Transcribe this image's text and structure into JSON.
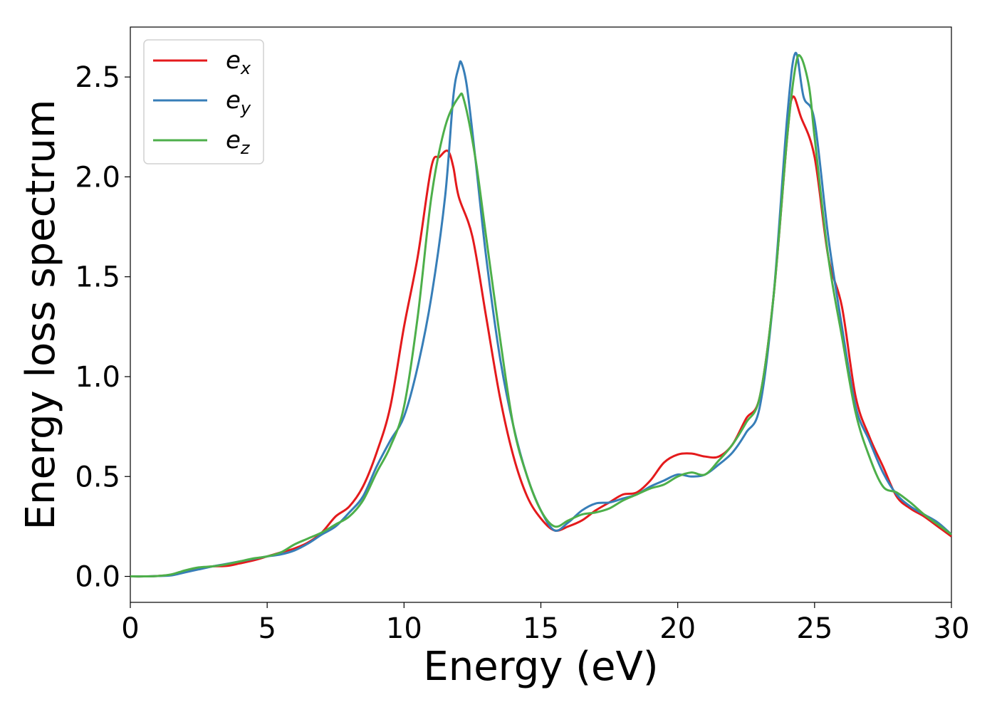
{
  "chart_data": {
    "type": "line",
    "title": "",
    "xlabel": "Energy (eV)",
    "ylabel": "Energy loss spectrum",
    "xlim": [
      0,
      30
    ],
    "ylim": [
      -0.13,
      2.75
    ],
    "xticks": [
      0,
      5,
      10,
      15,
      20,
      25,
      30
    ],
    "xtick_labels": [
      "0",
      "5",
      "10",
      "15",
      "20",
      "25",
      "30"
    ],
    "yticks": [
      0.0,
      0.5,
      1.0,
      1.5,
      2.0,
      2.5
    ],
    "ytick_labels": [
      "0.0",
      "0.5",
      "1.0",
      "1.5",
      "2.0",
      "2.5"
    ],
    "grid": false,
    "legend_position": "top-left",
    "series": [
      {
        "name": "e",
        "subscript": "x",
        "color": "#e41a1c",
        "points": [
          [
            0,
            0
          ],
          [
            0.5,
            0
          ],
          [
            1,
            0.002
          ],
          [
            1.5,
            0.008
          ],
          [
            2,
            0.025
          ],
          [
            2.5,
            0.04
          ],
          [
            3,
            0.05
          ],
          [
            3.5,
            0.052
          ],
          [
            4,
            0.065
          ],
          [
            4.5,
            0.08
          ],
          [
            5,
            0.1
          ],
          [
            5.5,
            0.12
          ],
          [
            6,
            0.14
          ],
          [
            6.5,
            0.17
          ],
          [
            7,
            0.22
          ],
          [
            7.5,
            0.3
          ],
          [
            8,
            0.35
          ],
          [
            8.5,
            0.45
          ],
          [
            9,
            0.62
          ],
          [
            9.5,
            0.85
          ],
          [
            10,
            1.25
          ],
          [
            10.5,
            1.6
          ],
          [
            11,
            2.05
          ],
          [
            11.3,
            2.1
          ],
          [
            11.6,
            2.13
          ],
          [
            11.8,
            2.05
          ],
          [
            12,
            1.9
          ],
          [
            12.5,
            1.7
          ],
          [
            13,
            1.3
          ],
          [
            13.5,
            0.9
          ],
          [
            14,
            0.6
          ],
          [
            14.5,
            0.4
          ],
          [
            15,
            0.29
          ],
          [
            15.5,
            0.23
          ],
          [
            16,
            0.25
          ],
          [
            16.5,
            0.28
          ],
          [
            17,
            0.33
          ],
          [
            17.5,
            0.37
          ],
          [
            18,
            0.41
          ],
          [
            18.5,
            0.42
          ],
          [
            19,
            0.48
          ],
          [
            19.5,
            0.57
          ],
          [
            20,
            0.61
          ],
          [
            20.5,
            0.615
          ],
          [
            21,
            0.6
          ],
          [
            21.5,
            0.6
          ],
          [
            22,
            0.66
          ],
          [
            22.5,
            0.79
          ],
          [
            23,
            0.9
          ],
          [
            23.5,
            1.4
          ],
          [
            24,
            2.2
          ],
          [
            24.2,
            2.4
          ],
          [
            24.5,
            2.3
          ],
          [
            25,
            2.1
          ],
          [
            25.5,
            1.6
          ],
          [
            26,
            1.35
          ],
          [
            26.5,
            0.9
          ],
          [
            27,
            0.7
          ],
          [
            27.5,
            0.55
          ],
          [
            28,
            0.4
          ],
          [
            28.5,
            0.34
          ],
          [
            29,
            0.3
          ],
          [
            29.5,
            0.25
          ],
          [
            30,
            0.2
          ]
        ]
      },
      {
        "name": "e",
        "subscript": "y",
        "color": "#377eb8",
        "points": [
          [
            0,
            0
          ],
          [
            0.5,
            0
          ],
          [
            1,
            0.002
          ],
          [
            1.5,
            0.005
          ],
          [
            2,
            0.02
          ],
          [
            2.5,
            0.035
          ],
          [
            3,
            0.05
          ],
          [
            3.5,
            0.062
          ],
          [
            4,
            0.075
          ],
          [
            4.5,
            0.088
          ],
          [
            5,
            0.1
          ],
          [
            5.5,
            0.11
          ],
          [
            6,
            0.13
          ],
          [
            6.5,
            0.165
          ],
          [
            7,
            0.21
          ],
          [
            7.5,
            0.25
          ],
          [
            8,
            0.32
          ],
          [
            8.5,
            0.4
          ],
          [
            9,
            0.55
          ],
          [
            9.5,
            0.68
          ],
          [
            10,
            0.8
          ],
          [
            10.5,
            1.05
          ],
          [
            11,
            1.4
          ],
          [
            11.5,
            1.9
          ],
          [
            11.8,
            2.4
          ],
          [
            12,
            2.55
          ],
          [
            12.1,
            2.57
          ],
          [
            12.3,
            2.45
          ],
          [
            12.6,
            2.1
          ],
          [
            13,
            1.6
          ],
          [
            13.5,
            1.1
          ],
          [
            14,
            0.75
          ],
          [
            14.5,
            0.5
          ],
          [
            15,
            0.33
          ],
          [
            15.5,
            0.23
          ],
          [
            16,
            0.27
          ],
          [
            16.5,
            0.33
          ],
          [
            17,
            0.365
          ],
          [
            17.5,
            0.37
          ],
          [
            18,
            0.39
          ],
          [
            18.5,
            0.41
          ],
          [
            19,
            0.45
          ],
          [
            19.5,
            0.48
          ],
          [
            20,
            0.51
          ],
          [
            20.5,
            0.5
          ],
          [
            21,
            0.51
          ],
          [
            21.5,
            0.56
          ],
          [
            22,
            0.62
          ],
          [
            22.5,
            0.72
          ],
          [
            23,
            0.85
          ],
          [
            23.5,
            1.4
          ],
          [
            24,
            2.3
          ],
          [
            24.3,
            2.62
          ],
          [
            24.6,
            2.4
          ],
          [
            25,
            2.28
          ],
          [
            25.5,
            1.7
          ],
          [
            26,
            1.25
          ],
          [
            26.5,
            0.85
          ],
          [
            27,
            0.68
          ],
          [
            27.5,
            0.52
          ],
          [
            28,
            0.41
          ],
          [
            28.5,
            0.35
          ],
          [
            29,
            0.31
          ],
          [
            29.5,
            0.27
          ],
          [
            30,
            0.21
          ]
        ]
      },
      {
        "name": "e",
        "subscript": "z",
        "color": "#4daf4a",
        "points": [
          [
            0,
            0
          ],
          [
            0.5,
            0
          ],
          [
            1,
            0.002
          ],
          [
            1.5,
            0.01
          ],
          [
            2,
            0.03
          ],
          [
            2.5,
            0.045
          ],
          [
            3,
            0.05
          ],
          [
            3.5,
            0.06
          ],
          [
            4,
            0.075
          ],
          [
            4.5,
            0.09
          ],
          [
            5,
            0.1
          ],
          [
            5.5,
            0.12
          ],
          [
            6,
            0.16
          ],
          [
            6.5,
            0.19
          ],
          [
            7,
            0.22
          ],
          [
            7.5,
            0.26
          ],
          [
            8,
            0.3
          ],
          [
            8.5,
            0.38
          ],
          [
            9,
            0.52
          ],
          [
            9.5,
            0.65
          ],
          [
            10,
            0.85
          ],
          [
            10.5,
            1.3
          ],
          [
            11,
            1.9
          ],
          [
            11.5,
            2.25
          ],
          [
            12,
            2.4
          ],
          [
            12.2,
            2.38
          ],
          [
            12.6,
            2.1
          ],
          [
            13,
            1.7
          ],
          [
            13.5,
            1.2
          ],
          [
            14,
            0.75
          ],
          [
            14.5,
            0.5
          ],
          [
            15,
            0.33
          ],
          [
            15.5,
            0.25
          ],
          [
            16,
            0.28
          ],
          [
            16.5,
            0.31
          ],
          [
            17,
            0.32
          ],
          [
            17.5,
            0.34
          ],
          [
            18,
            0.38
          ],
          [
            18.5,
            0.41
          ],
          [
            19,
            0.44
          ],
          [
            19.5,
            0.46
          ],
          [
            20,
            0.5
          ],
          [
            20.5,
            0.52
          ],
          [
            21,
            0.51
          ],
          [
            21.5,
            0.58
          ],
          [
            22,
            0.66
          ],
          [
            22.5,
            0.77
          ],
          [
            23,
            0.9
          ],
          [
            23.5,
            1.4
          ],
          [
            24,
            2.2
          ],
          [
            24.3,
            2.55
          ],
          [
            24.5,
            2.6
          ],
          [
            24.8,
            2.45
          ],
          [
            25,
            2.2
          ],
          [
            25.5,
            1.6
          ],
          [
            26,
            1.2
          ],
          [
            26.5,
            0.82
          ],
          [
            27,
            0.6
          ],
          [
            27.5,
            0.45
          ],
          [
            28,
            0.42
          ],
          [
            28.5,
            0.37
          ],
          [
            29,
            0.31
          ],
          [
            29.5,
            0.26
          ],
          [
            30,
            0.21
          ]
        ]
      }
    ]
  }
}
